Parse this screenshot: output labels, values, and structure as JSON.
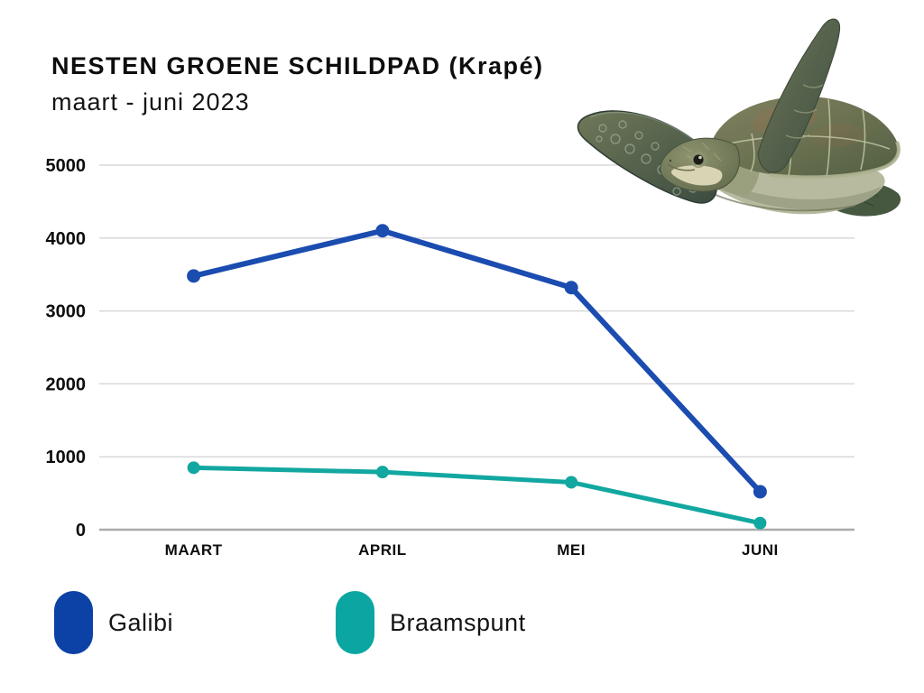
{
  "header": {
    "title": "NESTEN GROENE SCHILDPAD (Krapé)",
    "subtitle": "maart - juni 2023"
  },
  "chart_data": {
    "type": "line",
    "title": "NESTEN GROENE SCHILDPAD (Krapé)",
    "subtitle": "maart - juni 2023",
    "categories": [
      "MAART",
      "APRIL",
      "MEI",
      "JUNI"
    ],
    "series": [
      {
        "name": "Galibi",
        "values": [
          3480,
          4100,
          3320,
          520
        ],
        "color": "#1b4cb0",
        "legend_color": "#0c42a6",
        "line_width": 6,
        "point_radius": 7.5
      },
      {
        "name": "Braamspunt",
        "values": [
          850,
          790,
          650,
          90
        ],
        "color": "#12a7a0",
        "legend_color": "#0ba6a2",
        "line_width": 5,
        "point_radius": 7
      }
    ],
    "xlabel": "",
    "ylabel": "",
    "ylim": [
      0,
      5000
    ],
    "yticks": [
      0,
      1000,
      2000,
      3000,
      4000,
      5000
    ],
    "grid": true,
    "legend_position": "bottom"
  },
  "colors": {
    "background": "#ffffff",
    "grid_line": "#d9d9d9",
    "axis_line": "#ababab",
    "text": "#111111"
  }
}
